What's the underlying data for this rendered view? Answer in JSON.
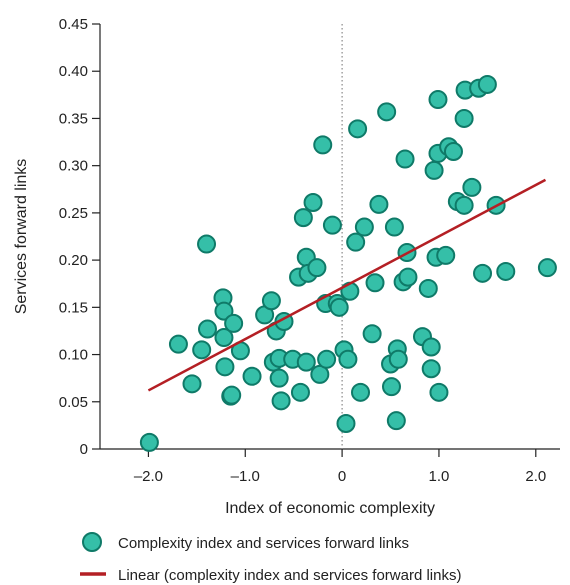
{
  "chart_data": {
    "type": "scatter",
    "title": "",
    "xlabel": "Index of economic complexity",
    "ylabel": "Services forward links",
    "xlim": [
      -2.5,
      2.25
    ],
    "ylim": [
      0,
      0.45
    ],
    "x_ticks": [
      -2.0,
      -1.0,
      0,
      1.0,
      2.0
    ],
    "x_tick_labels": [
      "–2.0",
      "–1.0",
      "0",
      "1.0",
      "2.0"
    ],
    "y_ticks": [
      0,
      0.05,
      0.1,
      0.15,
      0.2,
      0.25,
      0.3,
      0.35,
      0.4,
      0.45
    ],
    "y_tick_labels": [
      "0",
      "0.05",
      "0.10",
      "0.15",
      "0.20",
      "0.25",
      "0.30",
      "0.35",
      "0.40",
      "0.45"
    ],
    "grid": false,
    "zero_reference_line": true,
    "legend_position": "bottom",
    "colors": {
      "marker_fill": "#35bfa8",
      "marker_stroke": "#0f7a68",
      "trend_line": "#b41f24",
      "axis": "#222222",
      "reference_line": "#888888"
    },
    "series": [
      {
        "name": "Complexity index and services forward links",
        "kind": "scatter",
        "points": [
          [
            -1.99,
            0.007
          ],
          [
            -1.69,
            0.111
          ],
          [
            -1.55,
            0.069
          ],
          [
            -1.45,
            0.105
          ],
          [
            -1.4,
            0.217
          ],
          [
            -1.39,
            0.127
          ],
          [
            -1.23,
            0.16
          ],
          [
            -1.22,
            0.146
          ],
          [
            -1.22,
            0.118
          ],
          [
            -1.21,
            0.087
          ],
          [
            -1.15,
            0.056
          ],
          [
            -1.14,
            0.057
          ],
          [
            -1.12,
            0.133
          ],
          [
            -1.05,
            0.104
          ],
          [
            -0.93,
            0.077
          ],
          [
            -0.8,
            0.142
          ],
          [
            -0.73,
            0.157
          ],
          [
            -0.71,
            0.092
          ],
          [
            -0.68,
            0.125
          ],
          [
            -0.65,
            0.075
          ],
          [
            -0.65,
            0.096
          ],
          [
            -0.63,
            0.051
          ],
          [
            -0.6,
            0.135
          ],
          [
            -0.51,
            0.095
          ],
          [
            -0.45,
            0.182
          ],
          [
            -0.43,
            0.06
          ],
          [
            -0.4,
            0.245
          ],
          [
            -0.37,
            0.203
          ],
          [
            -0.37,
            0.092
          ],
          [
            -0.35,
            0.186
          ],
          [
            -0.3,
            0.261
          ],
          [
            -0.26,
            0.192
          ],
          [
            -0.23,
            0.079
          ],
          [
            -0.2,
            0.322
          ],
          [
            -0.17,
            0.154
          ],
          [
            -0.16,
            0.095
          ],
          [
            -0.1,
            0.237
          ],
          [
            -0.05,
            0.154
          ],
          [
            -0.03,
            0.15
          ],
          [
            0.02,
            0.105
          ],
          [
            0.04,
            0.027
          ],
          [
            0.06,
            0.095
          ],
          [
            0.08,
            0.167
          ],
          [
            0.14,
            0.219
          ],
          [
            0.16,
            0.339
          ],
          [
            0.19,
            0.06
          ],
          [
            0.23,
            0.235
          ],
          [
            0.31,
            0.122
          ],
          [
            0.34,
            0.176
          ],
          [
            0.38,
            0.259
          ],
          [
            0.46,
            0.357
          ],
          [
            0.5,
            0.09
          ],
          [
            0.51,
            0.066
          ],
          [
            0.54,
            0.235
          ],
          [
            0.56,
            0.03
          ],
          [
            0.57,
            0.106
          ],
          [
            0.58,
            0.095
          ],
          [
            0.63,
            0.177
          ],
          [
            0.65,
            0.307
          ],
          [
            0.67,
            0.208
          ],
          [
            0.68,
            0.182
          ],
          [
            0.83,
            0.119
          ],
          [
            0.89,
            0.17
          ],
          [
            0.92,
            0.085
          ],
          [
            0.92,
            0.108
          ],
          [
            0.95,
            0.295
          ],
          [
            0.97,
            0.203
          ],
          [
            0.99,
            0.313
          ],
          [
            0.99,
            0.37
          ],
          [
            1.0,
            0.06
          ],
          [
            1.07,
            0.205
          ],
          [
            1.1,
            0.32
          ],
          [
            1.15,
            0.315
          ],
          [
            1.19,
            0.262
          ],
          [
            1.26,
            0.258
          ],
          [
            1.26,
            0.35
          ],
          [
            1.27,
            0.38
          ],
          [
            1.34,
            0.277
          ],
          [
            1.41,
            0.382
          ],
          [
            1.45,
            0.186
          ],
          [
            1.5,
            0.386
          ],
          [
            1.59,
            0.258
          ],
          [
            1.69,
            0.188
          ],
          [
            2.12,
            0.192
          ]
        ]
      },
      {
        "name": "Linear (complexity index and services forward links)",
        "kind": "line",
        "points": [
          [
            -2.0,
            0.062
          ],
          [
            2.1,
            0.285
          ]
        ]
      }
    ]
  }
}
